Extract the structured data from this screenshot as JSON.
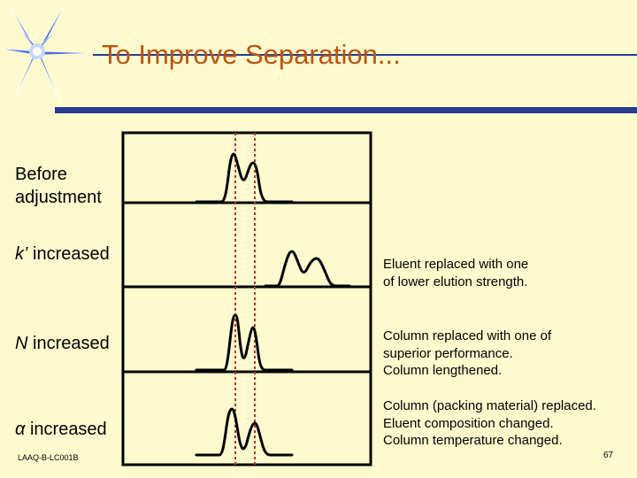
{
  "slide": {
    "title": "To Improve Separation...",
    "footer_id": "LAAQ-B-LC001B",
    "page_number": "67"
  },
  "rows": [
    {
      "label_lines": [
        "Before",
        "adjustment"
      ],
      "notes": []
    },
    {
      "label_symbol": "k’",
      "label_text": " increased",
      "notes": [
        "Eluent replaced with one",
        "of lower elution strength."
      ]
    },
    {
      "label_symbol": "N",
      "label_text": " increased",
      "notes": [
        "Column replaced with one of",
        "superior performance.",
        "Column lengthened."
      ]
    },
    {
      "label_symbol": "α",
      "label_text": " increased",
      "notes": [
        "Column (packing material) replaced.",
        "Eluent composition changed.",
        "Column temperature changed."
      ]
    }
  ],
  "colors": {
    "background": "#fdfbce",
    "title": "#b85412",
    "accent_band": "#283c8e",
    "marker_lines": "#c0302a",
    "star": "#4f6fd8"
  },
  "icons": [
    "star-logo-icon"
  ]
}
